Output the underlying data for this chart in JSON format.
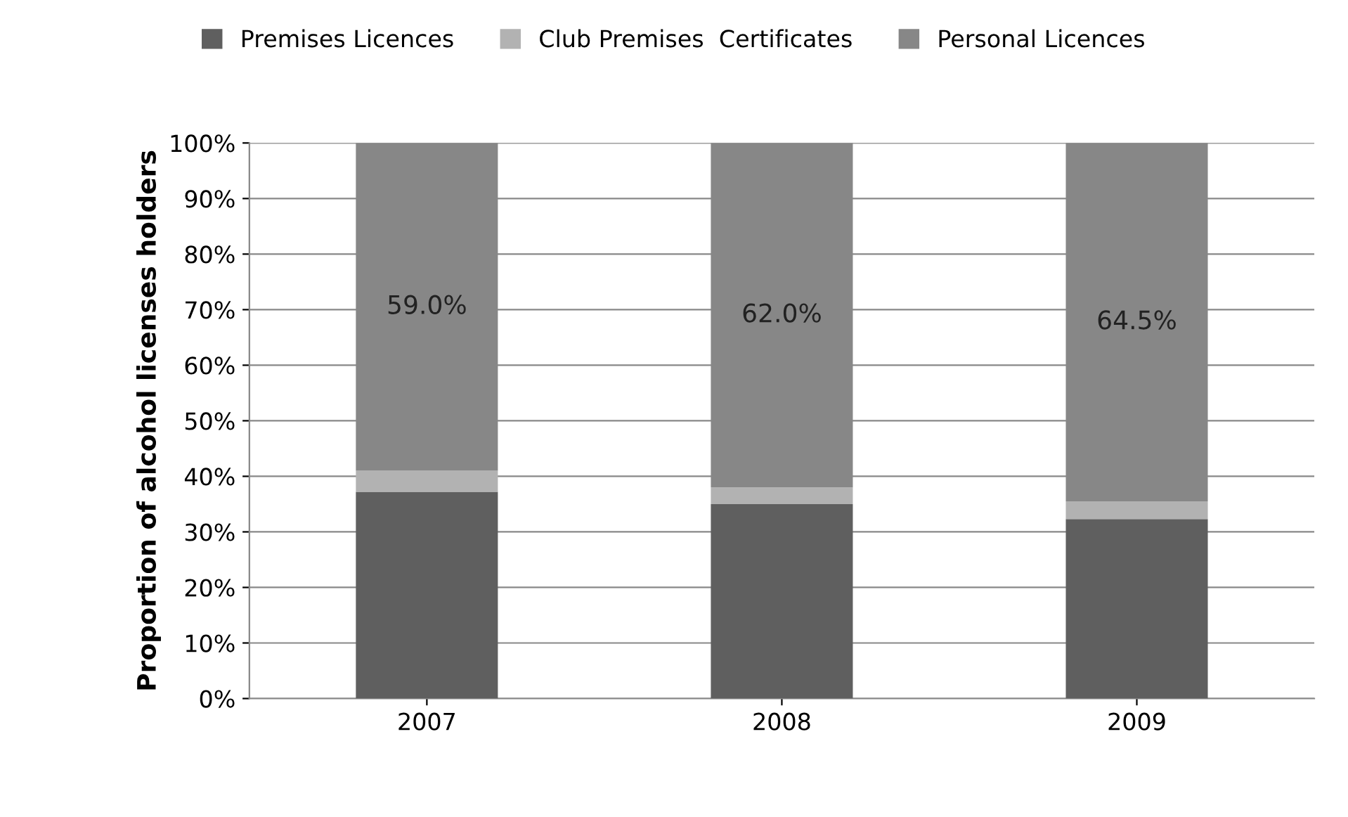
{
  "chart_data": {
    "type": "bar",
    "stacked": true,
    "ylabel": "Proportion of alcohol licenses holders",
    "categories": [
      "2007",
      "2008",
      "2009"
    ],
    "series": [
      {
        "name": "Premises Licences",
        "color": "#5f5f5f",
        "values": [
          37.2,
          35.0,
          32.3
        ]
      },
      {
        "name": "Club Premises  Certificates",
        "color": "#b2b2b2",
        "values": [
          3.8,
          3.0,
          3.2
        ]
      },
      {
        "name": "Personal Licences",
        "color": "#878787",
        "values": [
          59.0,
          62.0,
          64.5
        ],
        "value_labels": [
          "59.0%",
          "62.0%",
          "64.5%"
        ]
      }
    ],
    "ylim": [
      0,
      100
    ],
    "yticks": [
      {
        "value": 0,
        "label": "0%"
      },
      {
        "value": 10,
        "label": "10%"
      },
      {
        "value": 20,
        "label": "20%"
      },
      {
        "value": 30,
        "label": "30%"
      },
      {
        "value": 40,
        "label": "40%"
      },
      {
        "value": 50,
        "label": "50%"
      },
      {
        "value": 60,
        "label": "60%"
      },
      {
        "value": 70,
        "label": "70%"
      },
      {
        "value": 80,
        "label": "80%"
      },
      {
        "value": 90,
        "label": "90%"
      },
      {
        "value": 100,
        "label": "100%"
      }
    ],
    "grid": "y",
    "legend": "top"
  }
}
